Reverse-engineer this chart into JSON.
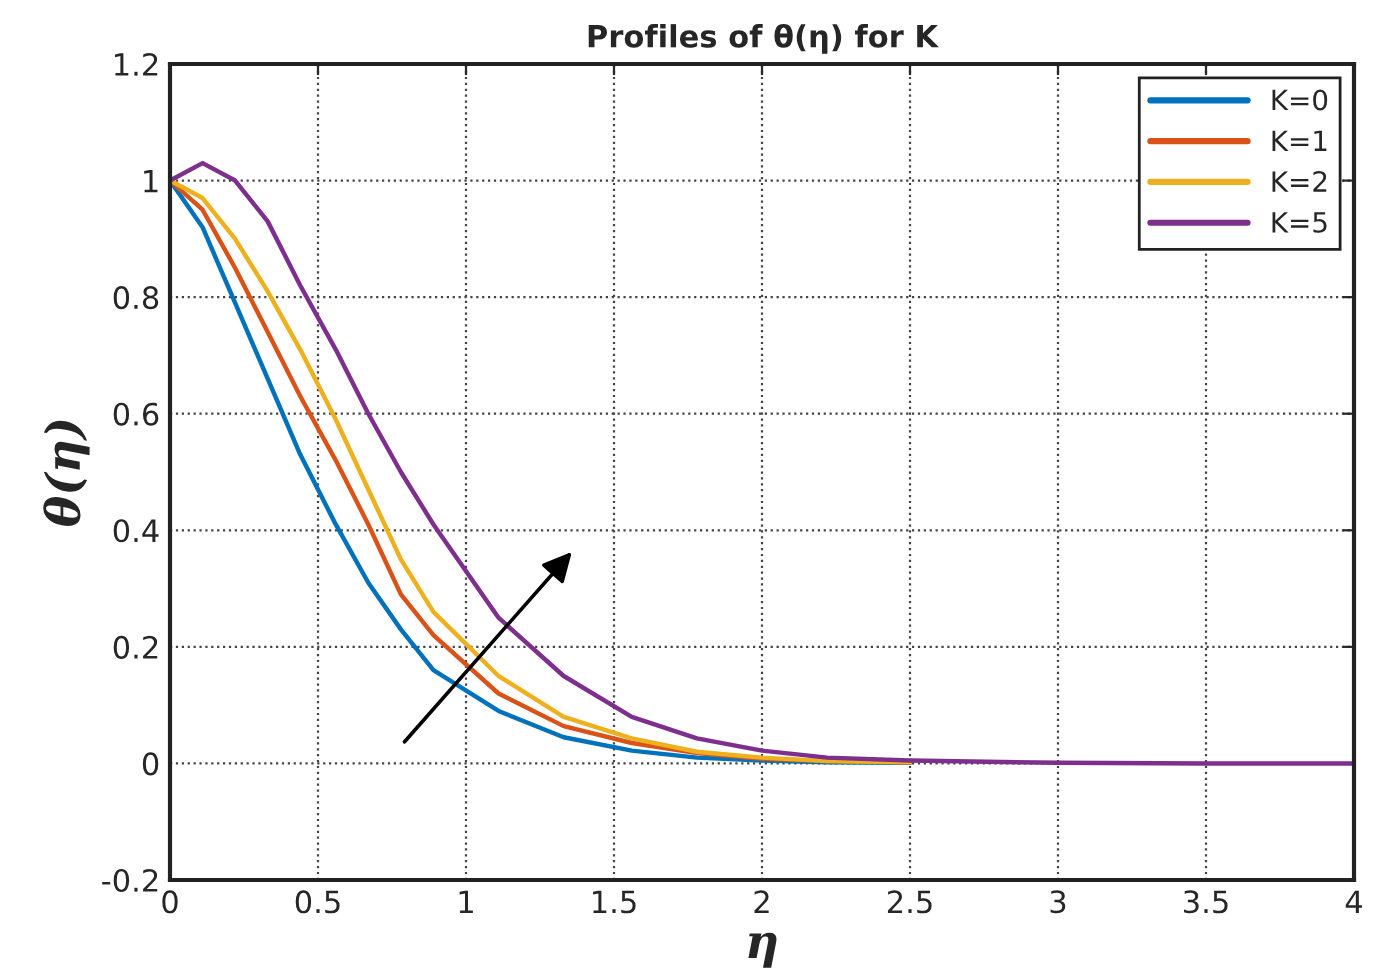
{
  "chart_data": {
    "type": "line",
    "title": "Profiles of θ(η) for K",
    "xlabel": "η",
    "ylabel": "θ(η)",
    "x": [
      0,
      0.11,
      0.22,
      0.33,
      0.44,
      0.56,
      0.67,
      0.78,
      0.89,
      1.11,
      1.33,
      1.56,
      1.78,
      2.0,
      2.22,
      2.5,
      3.0,
      3.5,
      4.0
    ],
    "series": [
      {
        "name": "K=0",
        "color": "#0072bd",
        "values": [
          1,
          0.92,
          0.79,
          0.66,
          0.53,
          0.41,
          0.31,
          0.23,
          0.16,
          0.09,
          0.045,
          0.022,
          0.01,
          0.005,
          0.002,
          0.001,
          null,
          null,
          null
        ]
      },
      {
        "name": "K=1",
        "color": "#d95319",
        "values": [
          1,
          0.95,
          0.85,
          0.74,
          0.63,
          0.52,
          0.41,
          0.29,
          0.22,
          0.12,
          0.064,
          0.035,
          0.018,
          0.008,
          0.004,
          0.002,
          null,
          null,
          null
        ]
      },
      {
        "name": "K=2",
        "color": "#edb120",
        "values": [
          1,
          0.97,
          0.9,
          0.81,
          0.71,
          0.59,
          0.47,
          0.35,
          0.26,
          0.15,
          0.08,
          0.043,
          0.02,
          0.01,
          0.004,
          0.002,
          null,
          null,
          null
        ]
      },
      {
        "name": "K=5",
        "color": "#7e2f8e",
        "values": [
          1,
          1.03,
          1.0,
          0.93,
          0.82,
          0.71,
          0.6,
          0.5,
          0.41,
          0.25,
          0.15,
          0.08,
          0.043,
          0.022,
          0.01,
          0.005,
          0.001,
          0,
          0
        ]
      }
    ],
    "xlim": [
      0,
      4
    ],
    "xticks": [
      0,
      0.5,
      1,
      1.5,
      2,
      2.5,
      3,
      3.5,
      4
    ],
    "ylim": [
      -0.2,
      1.2
    ],
    "yticks": [
      -0.2,
      0,
      0.2,
      0.4,
      0.6,
      0.8,
      1,
      1.2
    ],
    "grid": true,
    "legend": "top right",
    "line_style": "solid",
    "marker": "none"
  }
}
